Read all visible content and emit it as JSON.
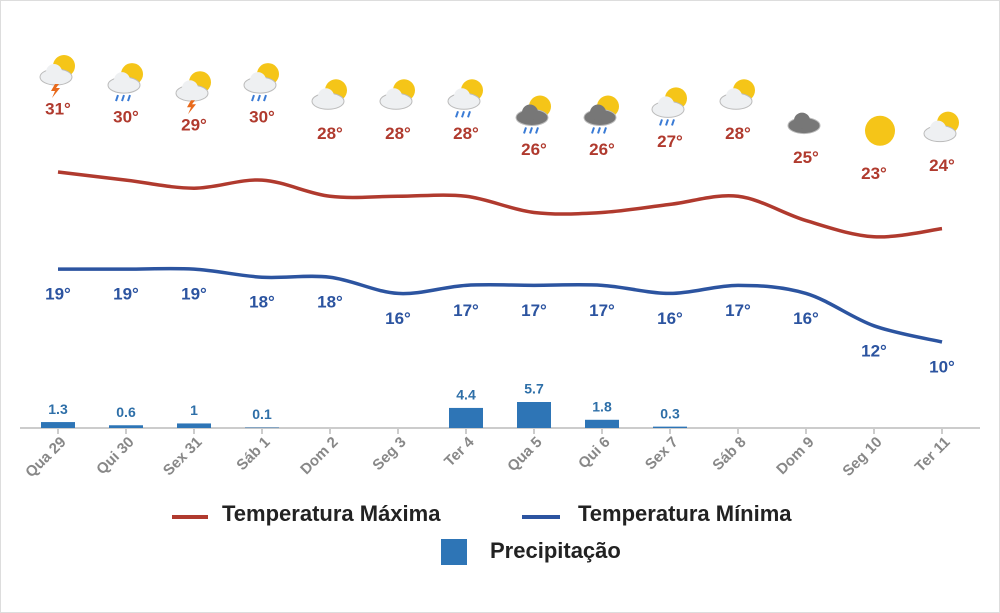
{
  "chart_data": {
    "type": "weather",
    "categories": [
      "Qua 29",
      "Qui 30",
      "Sex 31",
      "Sáb 1",
      "Dom 2",
      "Seg 3",
      "Ter 4",
      "Qua 5",
      "Qui 6",
      "Sex 7",
      "Sáb 8",
      "Dom 9",
      "Seg 10",
      "Ter 11"
    ],
    "series": [
      {
        "name": "Temperatura Máxima",
        "color": "#b03a2e",
        "values": [
          31,
          30,
          29,
          30,
          28,
          28,
          28,
          26,
          26,
          27,
          28,
          25,
          23,
          24
        ],
        "value_labels": [
          "31°",
          "30°",
          "29°",
          "30°",
          "28°",
          "28°",
          "28°",
          "26°",
          "26°",
          "27°",
          "28°",
          "25°",
          "23°",
          "24°"
        ]
      },
      {
        "name": "Temperatura Mínima",
        "color": "#2c54a0",
        "values": [
          19,
          19,
          19,
          18,
          18,
          16,
          17,
          17,
          17,
          16,
          17,
          16,
          12,
          10
        ],
        "value_labels": [
          "19°",
          "19°",
          "19°",
          "18°",
          "18°",
          "16°",
          "17°",
          "17°",
          "17°",
          "16°",
          "17°",
          "16°",
          "12°",
          "10°"
        ]
      },
      {
        "name": "Precipitação",
        "color": "#2e75b6",
        "values": [
          1.3,
          0.6,
          1,
          0.1,
          null,
          null,
          4.4,
          5.7,
          1.8,
          0.3,
          null,
          null,
          null,
          null
        ]
      }
    ]
  }
}
